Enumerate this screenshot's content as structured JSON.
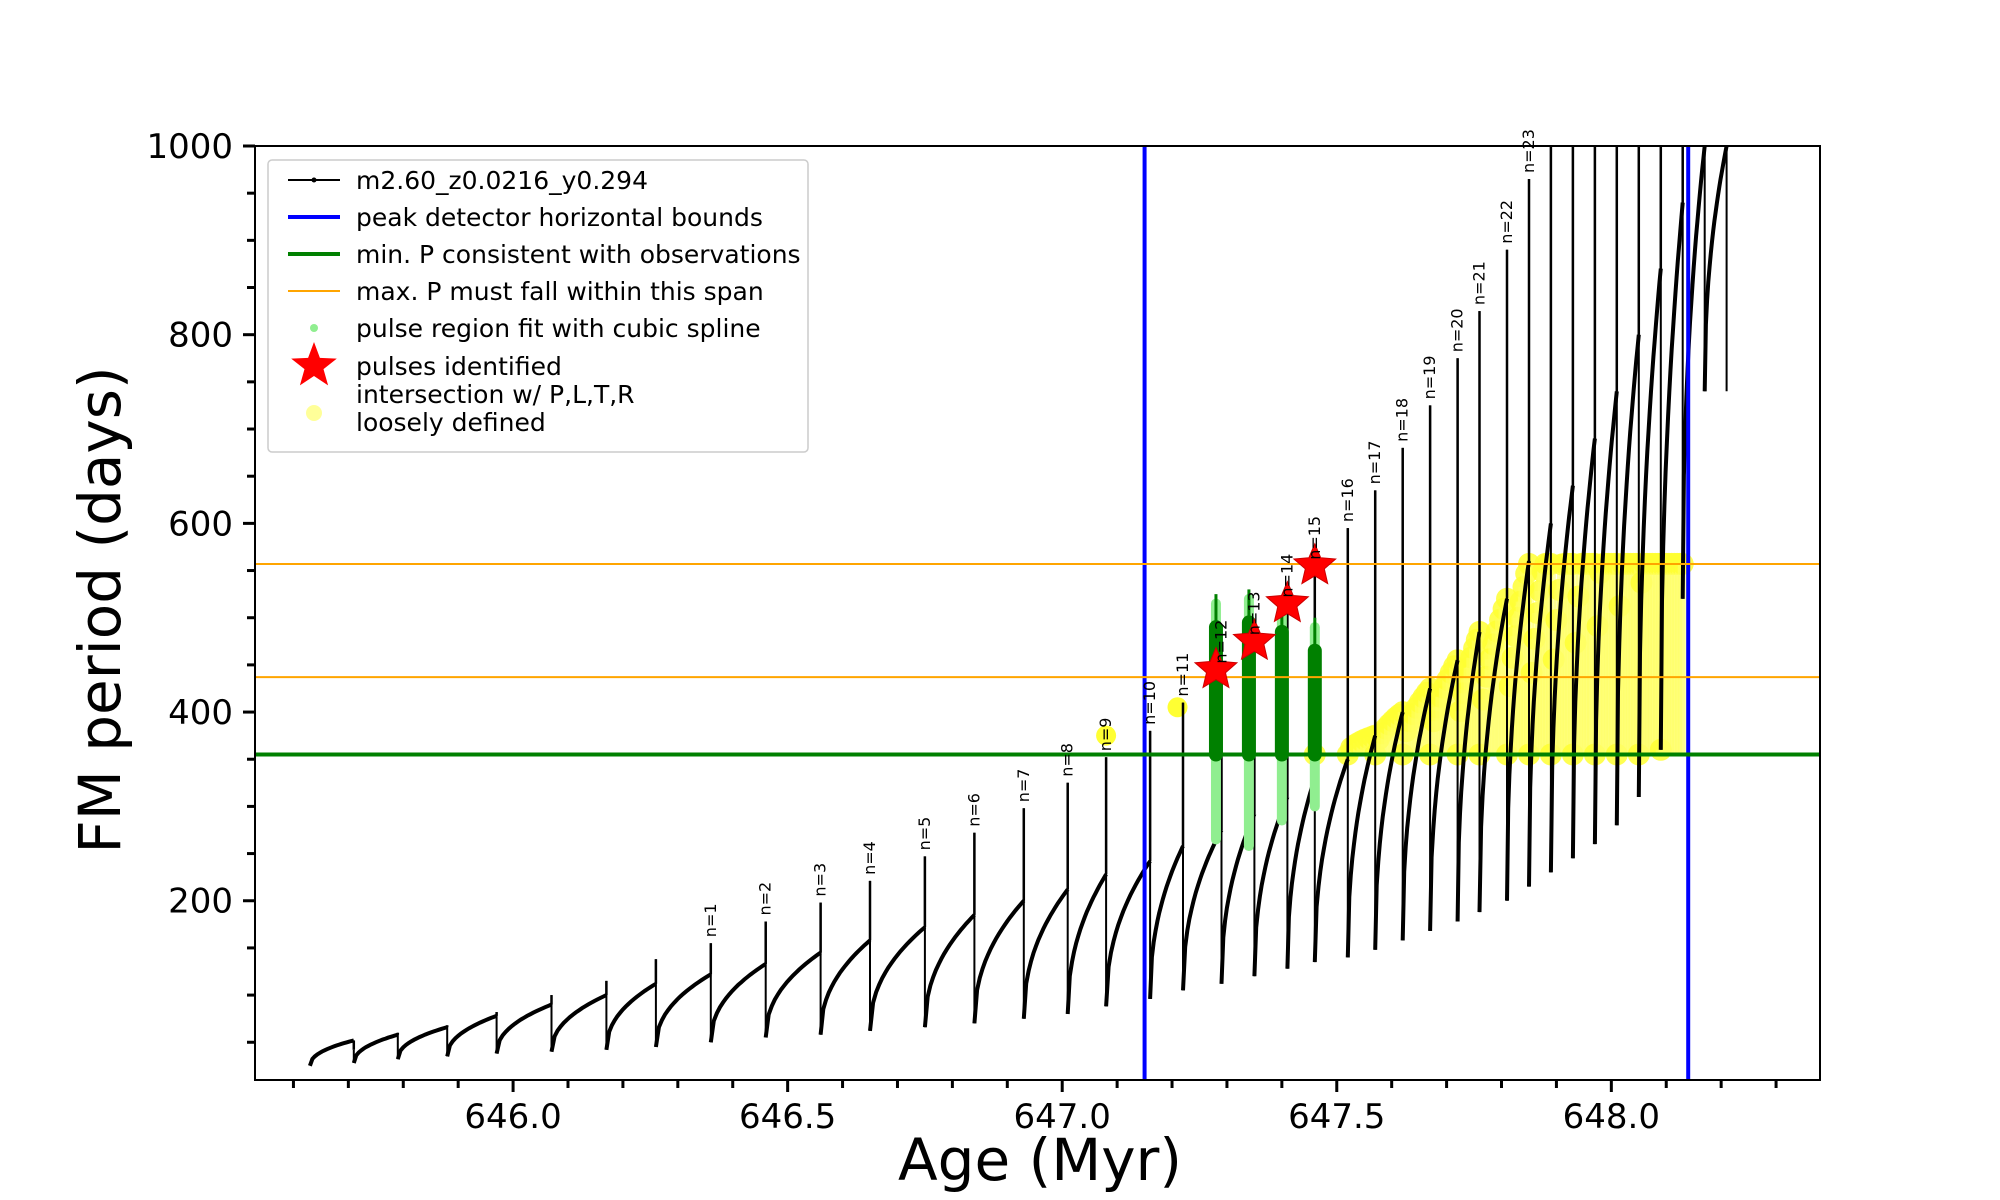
{
  "chart_data": {
    "type": "line",
    "xlabel": "Age (Myr)",
    "ylabel": "FM period (days)",
    "xlim": [
      645.53,
      648.38
    ],
    "ylim": [
      10,
      1000
    ],
    "x_ticks": [
      646.0,
      646.5,
      647.0,
      647.5,
      648.0
    ],
    "x_tick_labels": [
      "646.0",
      "646.5",
      "647.0",
      "647.5",
      "648.0"
    ],
    "y_ticks": [
      200,
      400,
      600,
      800,
      1000
    ],
    "y_tick_labels": [
      "200",
      "400",
      "600",
      "800",
      "1000"
    ],
    "grid": false,
    "legend_position": "upper-left",
    "legend": [
      {
        "label": "m2.60_z0.0216_y0.294",
        "color": "#000000",
        "marker": "line-dot"
      },
      {
        "label": "peak detector horizontal bounds",
        "color": "#0000ff",
        "marker": "line"
      },
      {
        "label": "min. P consistent with observations",
        "color": "#008000",
        "marker": "line"
      },
      {
        "label": "max. P must fall within this span",
        "color": "#ffa500",
        "marker": "thin-line"
      },
      {
        "label": "pulse region fit with cubic spline",
        "color": "#90ee90",
        "marker": "dot"
      },
      {
        "label": "pulses identified",
        "color": "#ff0000",
        "marker": "star"
      },
      {
        "label": "intersection w/ P,L,T,R\nloosely defined",
        "color": "#ffff99",
        "marker": "circle"
      }
    ],
    "vertical_lines": [
      {
        "x": 647.15,
        "color": "#0000ff",
        "name": "peak detector horizontal bound"
      },
      {
        "x": 648.14,
        "color": "#0000ff",
        "name": "peak detector horizontal bound"
      }
    ],
    "horizontal_lines": [
      {
        "y": 355,
        "color": "#008000",
        "name": "min. P consistent with observations"
      },
      {
        "y": 437,
        "color": "#ffa500",
        "name": "max. P span lower"
      },
      {
        "y": 557,
        "color": "#ffa500",
        "name": "max. P span upper"
      }
    ],
    "pulse_labels": [
      {
        "text": "n=1",
        "x": 646.36,
        "y": 155
      },
      {
        "text": "n=2",
        "x": 646.46,
        "y": 178
      },
      {
        "text": "n=3",
        "x": 646.56,
        "y": 198
      },
      {
        "text": "n=4",
        "x": 646.65,
        "y": 221
      },
      {
        "text": "n=5",
        "x": 646.75,
        "y": 247
      },
      {
        "text": "n=6",
        "x": 646.84,
        "y": 272
      },
      {
        "text": "n=7",
        "x": 646.93,
        "y": 298
      },
      {
        "text": "n=8",
        "x": 647.01,
        "y": 325
      },
      {
        "text": "n=9",
        "x": 647.08,
        "y": 352
      },
      {
        "text": "n=10",
        "x": 647.16,
        "y": 380
      },
      {
        "text": "n=11",
        "x": 647.22,
        "y": 410
      },
      {
        "text": "n=12",
        "x": 647.29,
        "y": 445
      },
      {
        "text": "n=13",
        "x": 647.35,
        "y": 475
      },
      {
        "text": "n=14",
        "x": 647.41,
        "y": 515
      },
      {
        "text": "n=15",
        "x": 647.46,
        "y": 555
      },
      {
        "text": "n=16",
        "x": 647.52,
        "y": 595
      },
      {
        "text": "n=17",
        "x": 647.57,
        "y": 635
      },
      {
        "text": "n=18",
        "x": 647.62,
        "y": 680
      },
      {
        "text": "n=19",
        "x": 647.67,
        "y": 725
      },
      {
        "text": "n=20",
        "x": 647.72,
        "y": 775
      },
      {
        "text": "n=21",
        "x": 647.76,
        "y": 825
      },
      {
        "text": "n=22",
        "x": 647.81,
        "y": 890
      },
      {
        "text": "n=23",
        "x": 647.85,
        "y": 965
      }
    ],
    "series": [
      {
        "name": "m2.60_z0.0216_y0.294",
        "color": "#000000",
        "cycles": [
          {
            "start": 645.63,
            "end": 645.71,
            "low": 25,
            "high": 52,
            "spike": 42
          },
          {
            "start": 645.71,
            "end": 645.79,
            "low": 28,
            "high": 58,
            "spike": 60
          },
          {
            "start": 645.79,
            "end": 645.88,
            "low": 32,
            "high": 66,
            "spike": 68
          },
          {
            "start": 645.88,
            "end": 645.97,
            "low": 35,
            "high": 78,
            "spike": 82
          },
          {
            "start": 645.97,
            "end": 646.07,
            "low": 38,
            "high": 90,
            "spike": 100
          },
          {
            "start": 646.07,
            "end": 646.17,
            "low": 40,
            "high": 100,
            "spike": 115
          },
          {
            "start": 646.17,
            "end": 646.26,
            "low": 42,
            "high": 112,
            "spike": 138
          },
          {
            "start": 646.26,
            "end": 646.36,
            "low": 45,
            "high": 122,
            "spike": 155
          },
          {
            "start": 646.36,
            "end": 646.46,
            "low": 50,
            "high": 133,
            "spike": 178
          },
          {
            "start": 646.46,
            "end": 646.56,
            "low": 55,
            "high": 145,
            "spike": 198
          },
          {
            "start": 646.56,
            "end": 646.65,
            "low": 58,
            "high": 158,
            "spike": 221
          },
          {
            "start": 646.65,
            "end": 646.75,
            "low": 62,
            "high": 172,
            "spike": 247
          },
          {
            "start": 646.75,
            "end": 646.84,
            "low": 66,
            "high": 185,
            "spike": 272
          },
          {
            "start": 646.84,
            "end": 646.93,
            "low": 70,
            "high": 200,
            "spike": 298
          },
          {
            "start": 646.93,
            "end": 647.01,
            "low": 75,
            "high": 212,
            "spike": 325
          },
          {
            "start": 647.01,
            "end": 647.08,
            "low": 80,
            "high": 228,
            "spike": 352
          },
          {
            "start": 647.08,
            "end": 647.16,
            "low": 88,
            "high": 242,
            "spike": 380
          },
          {
            "start": 647.16,
            "end": 647.22,
            "low": 96,
            "high": 258,
            "spike": 410
          },
          {
            "start": 647.22,
            "end": 647.29,
            "low": 105,
            "high": 275,
            "spike": 445
          },
          {
            "start": 647.29,
            "end": 647.35,
            "low": 112,
            "high": 292,
            "spike": 475
          },
          {
            "start": 647.35,
            "end": 647.41,
            "low": 120,
            "high": 310,
            "spike": 515
          },
          {
            "start": 647.41,
            "end": 647.46,
            "low": 128,
            "high": 330,
            "spike": 555
          },
          {
            "start": 647.46,
            "end": 647.52,
            "low": 135,
            "high": 350,
            "spike": 595
          },
          {
            "start": 647.52,
            "end": 647.57,
            "low": 140,
            "high": 375,
            "spike": 635
          },
          {
            "start": 647.57,
            "end": 647.62,
            "low": 148,
            "high": 400,
            "spike": 680
          },
          {
            "start": 647.62,
            "end": 647.67,
            "low": 158,
            "high": 425,
            "spike": 725
          },
          {
            "start": 647.67,
            "end": 647.72,
            "low": 168,
            "high": 455,
            "spike": 775
          },
          {
            "start": 647.72,
            "end": 647.76,
            "low": 178,
            "high": 485,
            "spike": 825
          },
          {
            "start": 647.76,
            "end": 647.81,
            "low": 188,
            "high": 520,
            "spike": 890
          },
          {
            "start": 647.81,
            "end": 647.85,
            "low": 200,
            "high": 560,
            "spike": 965
          },
          {
            "start": 647.85,
            "end": 647.89,
            "low": 215,
            "high": 600,
            "spike": 1000
          },
          {
            "start": 647.89,
            "end": 647.93,
            "low": 230,
            "high": 640,
            "spike": 1000
          },
          {
            "start": 647.93,
            "end": 647.97,
            "low": 245,
            "high": 690,
            "spike": 1000
          },
          {
            "start": 647.97,
            "end": 648.01,
            "low": 260,
            "high": 740,
            "spike": 1000
          },
          {
            "start": 648.01,
            "end": 648.05,
            "low": 280,
            "high": 800,
            "spike": 1000
          },
          {
            "start": 648.05,
            "end": 648.09,
            "low": 310,
            "high": 870,
            "spike": 1000
          },
          {
            "start": 648.09,
            "end": 648.13,
            "low": 360,
            "high": 940,
            "spike": 1000
          },
          {
            "start": 648.13,
            "end": 648.17,
            "low": 520,
            "high": 1000,
            "spike": 1000
          },
          {
            "start": 648.17,
            "end": 648.21,
            "low": 740,
            "high": 1000,
            "spike": 1000
          }
        ]
      }
    ],
    "spline_pulses": [
      {
        "x": 647.28,
        "low": 265,
        "high": 515
      },
      {
        "x": 647.34,
        "low": 258,
        "high": 520
      },
      {
        "x": 647.4,
        "low": 285,
        "high": 510
      },
      {
        "x": 647.46,
        "low": 300,
        "high": 490
      }
    ],
    "pulses_identified": [
      {
        "x": 647.28,
        "y": 445
      },
      {
        "x": 647.35,
        "y": 475
      },
      {
        "x": 647.41,
        "y": 515
      },
      {
        "x": 647.46,
        "y": 555
      }
    ]
  }
}
